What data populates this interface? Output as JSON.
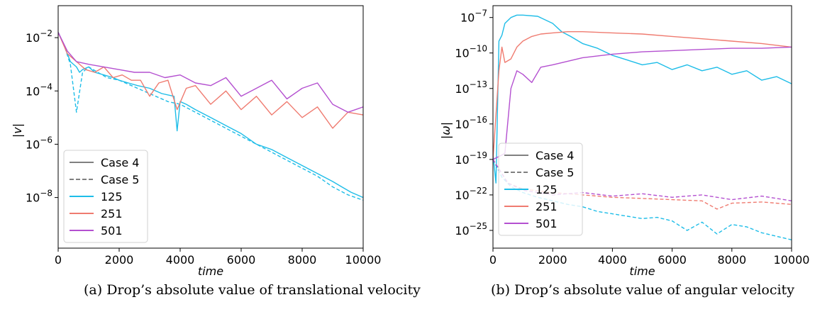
{
  "chart_data": [
    {
      "type": "line",
      "panel": "a",
      "caption": "(a) Drop’s absolute value of translational velocity",
      "xlabel": "time",
      "ylabel": "|v|",
      "xlim": [
        0,
        10000
      ],
      "ylim_log10": [
        -9.9,
        -0.8
      ],
      "yscale": "log",
      "xticks": [
        0,
        2000,
        4000,
        6000,
        8000,
        10000
      ],
      "yticks_exp": [
        -2,
        -4,
        -6,
        -8
      ],
      "legend": {
        "placement": "lower-left",
        "entries": [
          {
            "label": "Case 4",
            "color": "#808080",
            "dash": "solid"
          },
          {
            "label": "Case 5",
            "color": "#808080",
            "dash": "dashed"
          },
          {
            "label": "125",
            "color": "#1ebde8",
            "dash": "solid"
          },
          {
            "label": "251",
            "color": "#ef7b70",
            "dash": "solid"
          },
          {
            "label": "501",
            "color": "#b450d0",
            "dash": "solid"
          }
        ]
      },
      "series": [
        {
          "name": "125",
          "case": "Case 4",
          "color": "#1ebde8",
          "dash": "solid",
          "x": [
            0,
            200,
            400,
            600,
            700,
            800,
            1000,
            1200,
            1500,
            1800,
            2000,
            2300,
            2600,
            3000,
            3400,
            3800,
            3900,
            4000,
            4200,
            4500,
            5000,
            5500,
            6000,
            6500,
            7000,
            7500,
            8000,
            8500,
            9000,
            9300,
            9600,
            10000
          ],
          "y_log10": [
            -1.8,
            -2.3,
            -2.9,
            -3.1,
            -3.3,
            -3.2,
            -3.1,
            -3.3,
            -3.4,
            -3.5,
            -3.6,
            -3.7,
            -3.8,
            -3.9,
            -4.1,
            -4.2,
            -5.5,
            -4.4,
            -4.5,
            -4.7,
            -5.0,
            -5.3,
            -5.6,
            -6.0,
            -6.2,
            -6.5,
            -6.8,
            -7.1,
            -7.4,
            -7.6,
            -7.8,
            -8.0
          ]
        },
        {
          "name": "125",
          "case": "Case 5",
          "color": "#1ebde8",
          "dash": "dashed",
          "x": [
            0,
            200,
            400,
            600,
            800,
            1000,
            1300,
            1600,
            2000,
            2400,
            2800,
            3200,
            3600,
            4000,
            4500,
            5000,
            5500,
            6000,
            6500,
            7000,
            7500,
            8000,
            8500,
            9000,
            9500,
            10000
          ],
          "y_log10": [
            -1.8,
            -2.3,
            -3.0,
            -4.8,
            -3.3,
            -3.1,
            -3.3,
            -3.5,
            -3.6,
            -3.8,
            -4.0,
            -4.2,
            -4.4,
            -4.5,
            -4.8,
            -5.1,
            -5.4,
            -5.7,
            -6.0,
            -6.3,
            -6.6,
            -6.9,
            -7.2,
            -7.6,
            -7.9,
            -8.1
          ]
        },
        {
          "name": "251",
          "case": "Case 4",
          "color": "#ef7b70",
          "dash": "solid",
          "x": [
            0,
            300,
            600,
            900,
            1200,
            1500,
            1800,
            2100,
            2400,
            2700,
            3000,
            3300,
            3600,
            3900,
            4200,
            4500,
            5000,
            5500,
            6000,
            6500,
            7000,
            7500,
            8000,
            8500,
            9000,
            9500,
            10000
          ],
          "y_log10": [
            -1.8,
            -2.6,
            -2.9,
            -3.2,
            -3.3,
            -3.1,
            -3.5,
            -3.4,
            -3.6,
            -3.6,
            -4.2,
            -3.7,
            -3.6,
            -4.7,
            -3.9,
            -3.8,
            -4.5,
            -4.0,
            -4.7,
            -4.2,
            -4.9,
            -4.4,
            -5.0,
            -4.6,
            -5.4,
            -4.8,
            -4.9
          ]
        },
        {
          "name": "501",
          "case": "Case 4",
          "color": "#b450d0",
          "dash": "solid",
          "x": [
            0,
            300,
            600,
            1000,
            1500,
            2000,
            2500,
            3000,
            3500,
            4000,
            4500,
            5000,
            5500,
            6000,
            6500,
            7000,
            7500,
            8000,
            8500,
            9000,
            9500,
            10000
          ],
          "y_log10": [
            -1.8,
            -2.5,
            -2.9,
            -3.0,
            -3.1,
            -3.2,
            -3.3,
            -3.3,
            -3.5,
            -3.4,
            -3.7,
            -3.8,
            -3.5,
            -4.2,
            -3.9,
            -3.6,
            -4.3,
            -3.9,
            -3.7,
            -4.5,
            -4.8,
            -4.6
          ]
        }
      ]
    },
    {
      "type": "line",
      "panel": "b",
      "caption": "(b) Drop’s absolute value of angular velocity",
      "xlabel": "time",
      "ylabel": "|ω|",
      "xlim": [
        0,
        10000
      ],
      "ylim_log10": [
        -26.5,
        -6
      ],
      "yscale": "log",
      "xticks": [
        0,
        2000,
        4000,
        6000,
        8000,
        10000
      ],
      "yticks_exp": [
        -7,
        -10,
        -13,
        -16,
        -19,
        -22,
        -25
      ],
      "legend": {
        "placement": "lower-left",
        "entries": [
          {
            "label": "Case 4",
            "color": "#808080",
            "dash": "solid"
          },
          {
            "label": "Case 5",
            "color": "#808080",
            "dash": "dashed"
          },
          {
            "label": "125",
            "color": "#1ebde8",
            "dash": "solid"
          },
          {
            "label": "251",
            "color": "#ef7b70",
            "dash": "solid"
          },
          {
            "label": "501",
            "color": "#b450d0",
            "dash": "solid"
          }
        ]
      },
      "series": [
        {
          "name": "125",
          "case": "Case 4",
          "color": "#1ebde8",
          "dash": "solid",
          "x": [
            0,
            100,
            200,
            300,
            400,
            600,
            800,
            1000,
            1500,
            2000,
            2300,
            2600,
            3000,
            3500,
            4000,
            4500,
            5000,
            5500,
            6000,
            6500,
            7000,
            7500,
            8000,
            8500,
            9000,
            9500,
            10000
          ],
          "y_log10": [
            -18.5,
            -21,
            -9,
            -8.5,
            -7.5,
            -7.0,
            -6.8,
            -6.8,
            -6.9,
            -7.5,
            -8.2,
            -8.6,
            -9.2,
            -9.6,
            -10.2,
            -10.6,
            -11.0,
            -10.8,
            -11.4,
            -11.0,
            -11.5,
            -11.2,
            -11.8,
            -11.5,
            -12.3,
            -12.0,
            -12.6
          ]
        },
        {
          "name": "125",
          "case": "Case 5",
          "color": "#1ebde8",
          "dash": "dashed",
          "x": [
            0,
            300,
            600,
            1000,
            1500,
            2000,
            2500,
            3000,
            3500,
            4000,
            4500,
            5000,
            5500,
            6000,
            6500,
            7000,
            7500,
            8000,
            8500,
            9000,
            9500,
            10000
          ],
          "y_log10": [
            -19.0,
            -20.5,
            -21.3,
            -21.8,
            -22.2,
            -22.5,
            -22.8,
            -23.0,
            -23.4,
            -23.6,
            -23.8,
            -24.0,
            -23.9,
            -24.2,
            -25.0,
            -24.3,
            -25.3,
            -24.5,
            -24.7,
            -25.2,
            -25.5,
            -25.8
          ]
        },
        {
          "name": "251",
          "case": "Case 4",
          "color": "#ef7b70",
          "dash": "solid",
          "x": [
            0,
            200,
            300,
            400,
            600,
            800,
            1000,
            1300,
            1600,
            2000,
            2500,
            3000,
            4000,
            5000,
            6000,
            7000,
            8000,
            9000,
            10000
          ],
          "y_log10": [
            -19.0,
            -11.5,
            -9.5,
            -10.8,
            -10.5,
            -9.5,
            -9.0,
            -8.6,
            -8.4,
            -8.3,
            -8.2,
            -8.2,
            -8.3,
            -8.4,
            -8.6,
            -8.8,
            -9.0,
            -9.2,
            -9.5
          ]
        },
        {
          "name": "251",
          "case": "Case 5",
          "color": "#ef7b70",
          "dash": "dashed",
          "x": [
            0,
            500,
            1000,
            2000,
            3000,
            4000,
            5000,
            6000,
            7000,
            7500,
            8000,
            9000,
            10000
          ],
          "y_log10": [
            -19.0,
            -21.0,
            -21.5,
            -21.8,
            -22.0,
            -22.2,
            -22.3,
            -22.4,
            -22.5,
            -23.2,
            -22.7,
            -22.6,
            -22.8
          ]
        },
        {
          "name": "501",
          "case": "Case 4",
          "color": "#b450d0",
          "dash": "solid",
          "x": [
            0,
            400,
            600,
            800,
            1000,
            1300,
            1600,
            2000,
            2500,
            3000,
            4000,
            5000,
            6000,
            7000,
            8000,
            9000,
            10000
          ],
          "y_log10": [
            -19.0,
            -18.5,
            -13.0,
            -11.5,
            -11.8,
            -12.5,
            -11.2,
            -11.0,
            -10.7,
            -10.4,
            -10.1,
            -9.9,
            -9.8,
            -9.7,
            -9.6,
            -9.6,
            -9.5
          ]
        },
        {
          "name": "501",
          "case": "Case 5",
          "color": "#b450d0",
          "dash": "dashed",
          "x": [
            0,
            500,
            1000,
            2000,
            3000,
            4000,
            5000,
            6000,
            7000,
            8000,
            9000,
            10000
          ],
          "y_log10": [
            -19.0,
            -21.0,
            -21.6,
            -22.0,
            -21.8,
            -22.1,
            -21.9,
            -22.2,
            -22.0,
            -22.4,
            -22.1,
            -22.5
          ]
        }
      ]
    }
  ]
}
